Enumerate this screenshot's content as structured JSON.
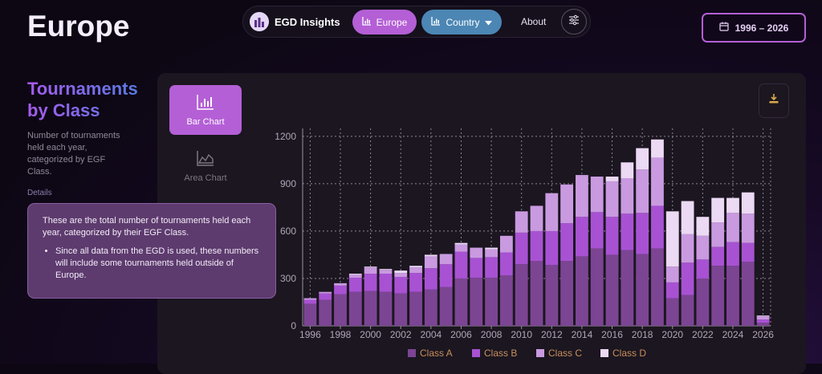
{
  "header": {
    "page_title": "Europe",
    "nav": {
      "brand": "EGD Insights",
      "europe_label": "Europe",
      "country_label": "Country",
      "about_label": "About"
    },
    "date_range": "1996 – 2026"
  },
  "sidebar": {
    "title": "Tournaments by Class",
    "description": "Number of tournaments held each year, categorized by EGF Class.",
    "details_label": "Details",
    "tooltip": {
      "text": "These are the total number of tournaments held each year, categorized by their EGF Class.",
      "bullet": "Since all data from the EGD is used, these numbers will include some tournaments held outside of Europe."
    }
  },
  "tabs": {
    "bar_label": "Bar Chart",
    "area_label": "Area Chart"
  },
  "icons": [
    "brand-logo-icon",
    "bar-chart-icon",
    "chevron-down-icon",
    "settings-sliders-icon",
    "calendar-icon",
    "area-chart-icon",
    "download-icon"
  ],
  "colors": {
    "accent": "#b45fd6",
    "country": "#4c86b4",
    "class_a": "#7c4593",
    "class_b": "#a852d3",
    "class_c": "#c99ae0",
    "class_d": "#ecd9f4"
  },
  "chart_data": {
    "type": "bar",
    "stacked": true,
    "categories": [
      "1996",
      "1997",
      "1998",
      "1999",
      "2000",
      "2001",
      "2002",
      "2003",
      "2004",
      "2005",
      "2006",
      "2007",
      "2008",
      "2009",
      "2010",
      "2011",
      "2012",
      "2013",
      "2014",
      "2015",
      "2016",
      "2017",
      "2018",
      "2019",
      "2020",
      "2021",
      "2022",
      "2023",
      "2024",
      "2025",
      "2026"
    ],
    "x_tick_labels": [
      "1996",
      "1998",
      "2000",
      "2002",
      "2004",
      "2006",
      "2008",
      "2010",
      "2012",
      "2014",
      "2016",
      "2018",
      "2020",
      "2022",
      "2024",
      "2026"
    ],
    "series": [
      {
        "name": "Class A",
        "color": "#7c4593",
        "values": [
          140,
          165,
          200,
          215,
          220,
          215,
          205,
          215,
          230,
          245,
          300,
          305,
          305,
          320,
          390,
          410,
          385,
          410,
          440,
          490,
          450,
          480,
          455,
          490,
          175,
          195,
          300,
          380,
          380,
          405,
          20
        ]
      },
      {
        "name": "Class B",
        "color": "#a852d3",
        "values": [
          25,
          40,
          55,
          90,
          110,
          115,
          105,
          120,
          135,
          145,
          170,
          125,
          130,
          145,
          200,
          190,
          215,
          240,
          250,
          230,
          240,
          230,
          260,
          270,
          100,
          205,
          120,
          120,
          150,
          120,
          20
        ]
      },
      {
        "name": "Class C",
        "color": "#c99ae0",
        "values": [
          10,
          10,
          15,
          20,
          40,
          25,
          25,
          35,
          75,
          65,
          45,
          65,
          50,
          105,
          135,
          160,
          240,
          245,
          265,
          225,
          225,
          225,
          275,
          305,
          100,
          180,
          150,
          155,
          185,
          185,
          20
        ]
      },
      {
        "name": "Class D",
        "color": "#ecd9f4",
        "values": [
          0,
          0,
          0,
          5,
          5,
          5,
          15,
          10,
          10,
          0,
          10,
          0,
          10,
          0,
          0,
          0,
          0,
          0,
          0,
          0,
          30,
          100,
          135,
          115,
          350,
          210,
          120,
          155,
          95,
          135,
          5
        ]
      }
    ],
    "ylim": [
      0,
      1250
    ],
    "y_ticks": [
      0,
      300,
      600,
      900,
      1200
    ],
    "grid": true,
    "legend_position": "bottom"
  }
}
